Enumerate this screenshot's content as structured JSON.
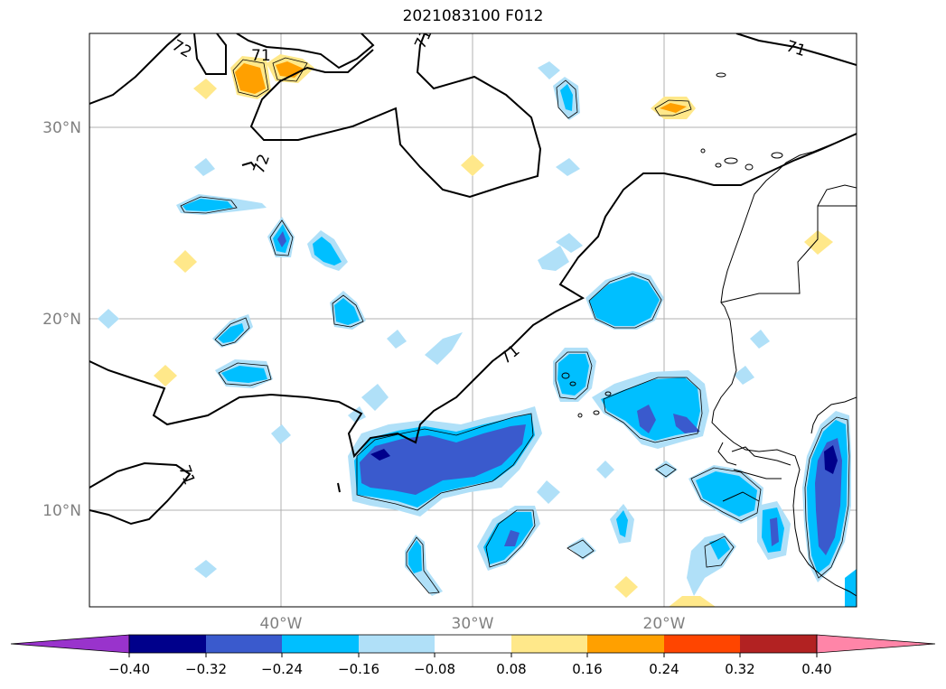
{
  "title": "2021083100 F012",
  "map": {
    "lat_labels": [
      "30°N",
      "20°N",
      "10°N"
    ],
    "lon_labels": [
      "40°W",
      "30°W",
      "20°W"
    ],
    "contour_labels": [
      "72",
      "71",
      "71",
      "71",
      "72",
      "71",
      "71"
    ]
  },
  "colorbar": {
    "colors": [
      "#9933cc",
      "#00008b",
      "#3a5acd",
      "#00bfff",
      "#b0e0f8",
      "#ffffff",
      "#ffe88a",
      "#ffa000",
      "#ff4500",
      "#b22222",
      "#ff85a8"
    ],
    "ticks": [
      "−0.40",
      "−0.32",
      "−0.24",
      "−0.16",
      "−0.08",
      "0.08",
      "0.16",
      "0.24",
      "0.32",
      "0.40"
    ]
  }
}
